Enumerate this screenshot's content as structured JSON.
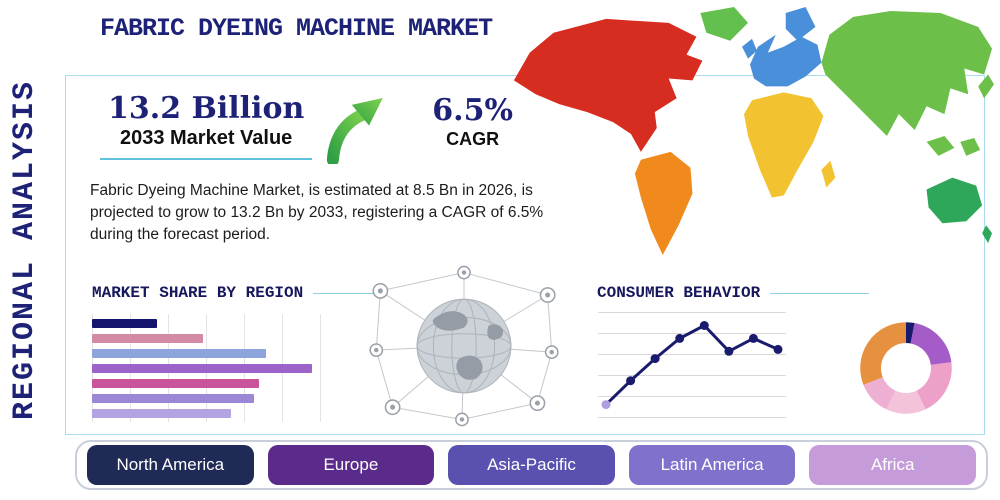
{
  "page": {
    "title": "FABRIC DYEING MACHINE MARKET",
    "side_label": "REGIONAL ANALYSIS"
  },
  "stats": {
    "value": "13.2 Billion",
    "value_label": "2033 Market Value",
    "cagr": "6.5%",
    "cagr_label": "CAGR",
    "description": "Fabric Dyeing Machine Market, is estimated at 8.5 Bn in 2026, is projected to grow to 13.2 Bn by 2033, registering a CAGR of 6.5% during the forecast period."
  },
  "sections": {
    "market_share": "MARKET SHARE BY REGION",
    "consumer_behavior": "CONSUMER BEHAVIOR"
  },
  "chart_data": [
    {
      "type": "bar",
      "title": "MARKET SHARE BY REGION",
      "orientation": "horizontal",
      "categories": [
        "",
        "",
        "",
        "",
        "",
        "",
        ""
      ],
      "values": [
        28,
        48,
        75,
        95,
        72,
        70,
        60
      ],
      "colors": [
        "#14146e",
        "#d489a6",
        "#8da4dc",
        "#9c63c9",
        "#c9549c",
        "#9c87d6",
        "#b3a3e3"
      ],
      "xlim": [
        0,
        100
      ],
      "grid": "vertical",
      "note": "unlabeled horizontal bars; values estimated as percent of chart width"
    },
    {
      "type": "line",
      "title": "CONSUMER BEHAVIOR",
      "x": [
        1,
        2,
        3,
        4,
        5,
        6,
        7,
        8
      ],
      "values": [
        8,
        34,
        58,
        80,
        94,
        66,
        80,
        68
      ],
      "line_color": "#1a1a6e",
      "first_point_color": "#b0a0e0",
      "ylim": [
        0,
        100
      ],
      "grid": "horizontal",
      "note": "unlabeled trend line; values estimated as percent of chart height"
    },
    {
      "type": "pie",
      "donut": true,
      "title": "",
      "slices": [
        {
          "label": "navy",
          "value": 3,
          "color": "#1a1a6e"
        },
        {
          "label": "purple",
          "value": 20,
          "color": "#a45cc8"
        },
        {
          "label": "pink",
          "value": 20,
          "color": "#eda0c8"
        },
        {
          "label": "pale-pink",
          "value": 14,
          "color": "#f3c3da"
        },
        {
          "label": "light-pink",
          "value": 12,
          "color": "#eeb0d2"
        },
        {
          "label": "orange",
          "value": 31,
          "color": "#e6913f"
        }
      ],
      "note": "unlabeled donut; slice sizes estimated"
    }
  ],
  "regions": [
    {
      "label": "North America",
      "color": "#1f2a56"
    },
    {
      "label": "Europe",
      "color": "#5a2b8a"
    },
    {
      "label": "Asia-Pacific",
      "color": "#5a50b0"
    },
    {
      "label": "Latin America",
      "color": "#8071cc"
    },
    {
      "label": "Africa",
      "color": "#c59cd9"
    }
  ],
  "map": {
    "colors": {
      "north_america": "#d62d20",
      "greenland": "#63c04f",
      "south_america": "#f08a1d",
      "europe": "#4a8fd9",
      "africa": "#f2c230",
      "asia": "#6cc04a",
      "australia": "#2fa75a"
    }
  },
  "palette": {
    "navy": "#1e2277",
    "teal_line": "#8fd0e2",
    "arrow_green_dark": "#2f9e44",
    "arrow_green_light": "#7ed34e"
  }
}
